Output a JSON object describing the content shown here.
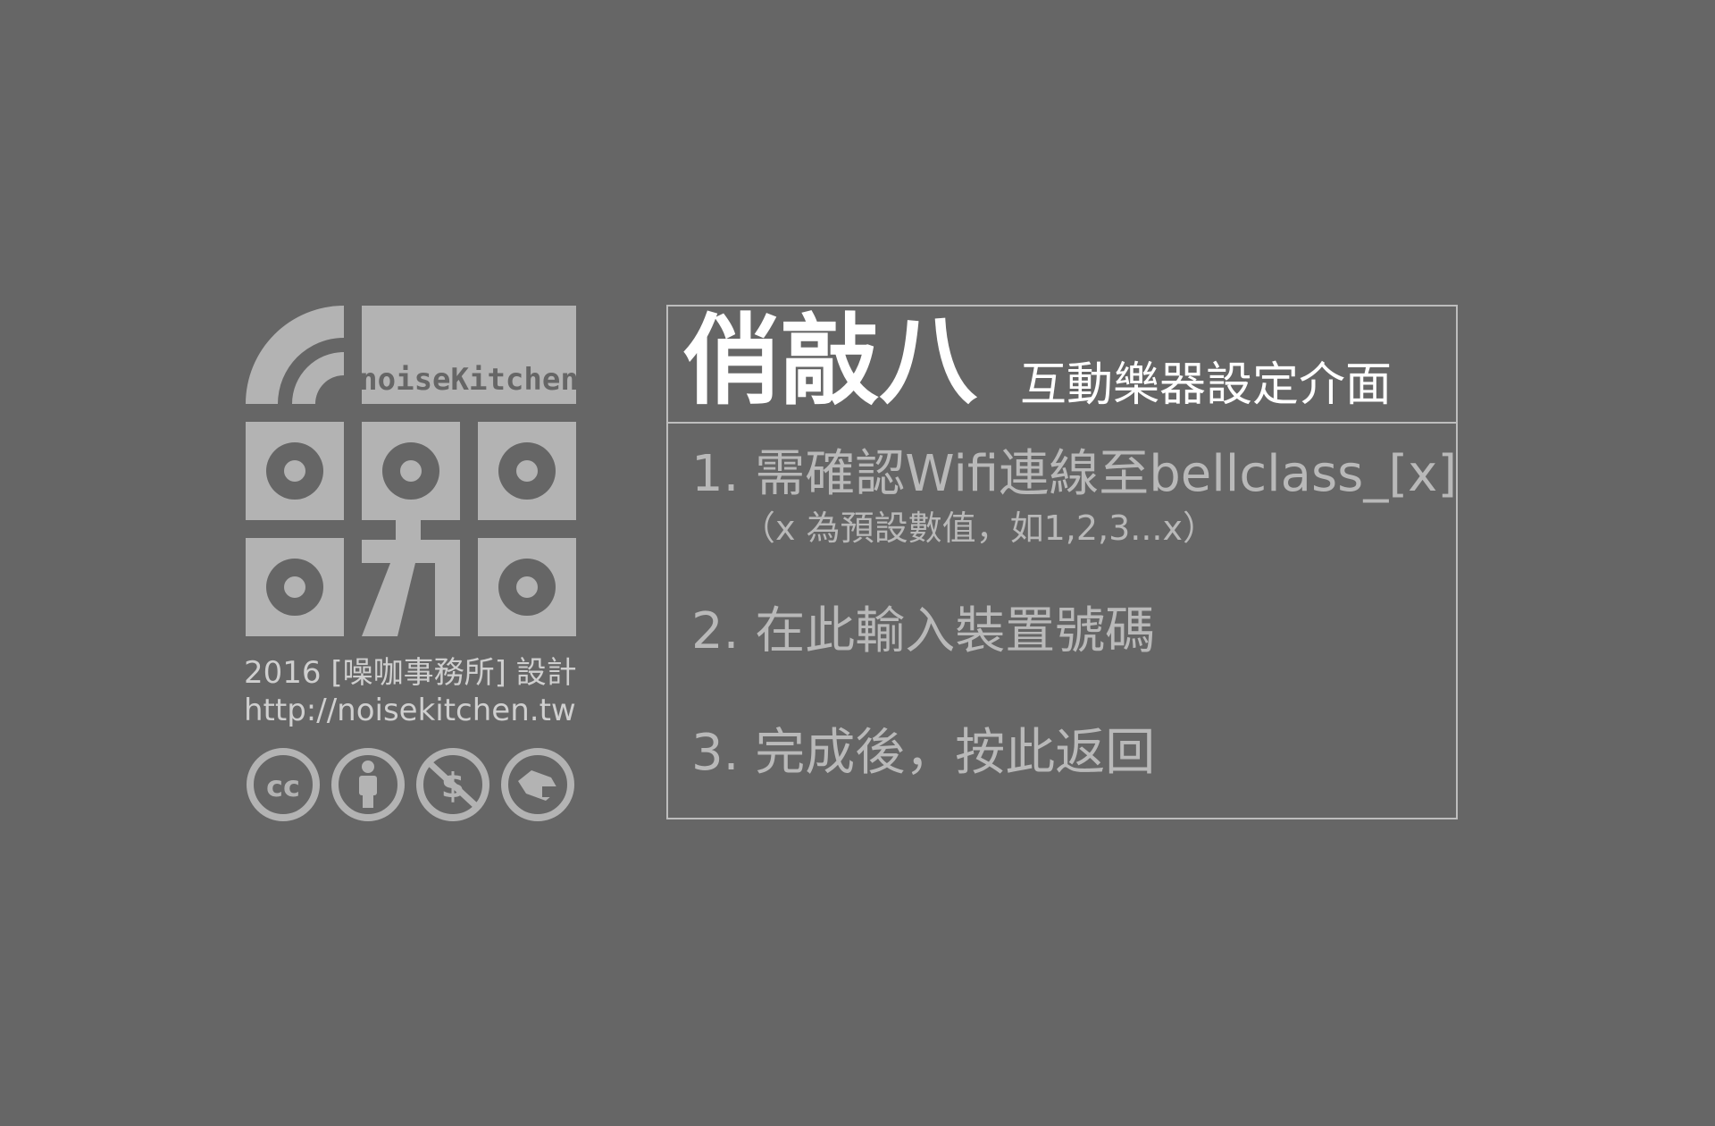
{
  "branding": {
    "logo_text": "noiseKitchen",
    "credit_line": "2016 [噪咖事務所] 設計",
    "url": "http://noisekitchen.tw",
    "license_icons": [
      "cc-icon",
      "attribution-icon",
      "noncommercial-icon",
      "share-alike-icon"
    ],
    "logo_color": "#b3b3b3",
    "background_color": "#666666"
  },
  "panel": {
    "title": "俏敲八",
    "subtitle": "互動樂器設定介面",
    "steps": [
      {
        "label": "1. 需確認Wifi連線至bellclass_[x]",
        "note": "（x 為預設數值，如1,2,3...x）"
      },
      {
        "label": "2. 在此輸入裝置號碼"
      },
      {
        "label": "3. 完成後，按此返回"
      }
    ]
  }
}
